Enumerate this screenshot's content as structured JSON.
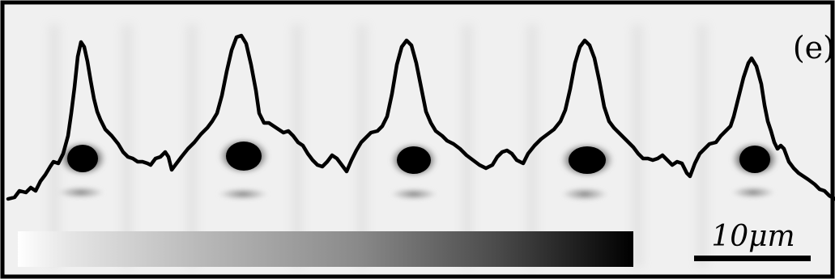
{
  "panel": {
    "label": "(e)"
  },
  "scale_bar": {
    "label": "10μm"
  },
  "colors": {
    "background": "#f1f1f1",
    "frame": "#000000",
    "spot": "#000000",
    "profile_line": "#000000",
    "colorbar_start": "#ffffff",
    "colorbar_end": "#000000"
  },
  "profile": {
    "peak_count": 5,
    "description_visible": false
  }
}
